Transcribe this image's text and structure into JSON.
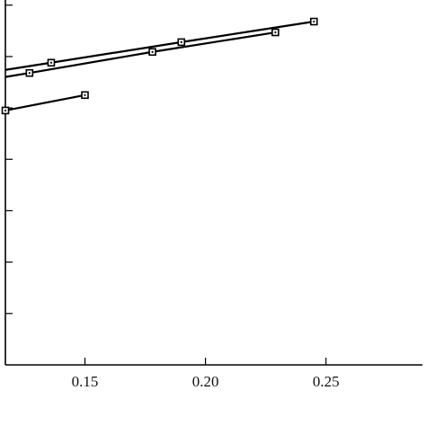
{
  "chart_data": {
    "type": "line",
    "title": "",
    "xlabel": "",
    "ylabel": "",
    "xlim": [
      0.117,
      0.29
    ],
    "ylim": [
      0,
      7.1
    ],
    "grid": false,
    "legend": "none",
    "x_ticks": [
      0.15,
      0.2,
      0.25
    ],
    "x_tick_labels": [
      "0.15",
      "0.20",
      "0.25"
    ],
    "y_ticks": [
      1,
      2,
      3,
      4,
      5,
      6,
      7
    ],
    "y_tick_labels": [],
    "series": [
      {
        "x": [
          0.136,
          0.19,
          0.245
        ],
        "y": [
          5.88,
          6.28,
          6.68
        ]
      },
      {
        "x": [
          0.127,
          0.178,
          0.229
        ],
        "y": [
          5.68,
          6.09,
          6.47
        ]
      },
      {
        "x": [
          0.117,
          0.15
        ],
        "y": [
          4.95,
          5.25
        ]
      }
    ],
    "series_extend_left": [
      true,
      true,
      false
    ],
    "colors": {
      "line": "#000000",
      "marker_fill": "#ffffff",
      "axis": "#000000"
    }
  }
}
